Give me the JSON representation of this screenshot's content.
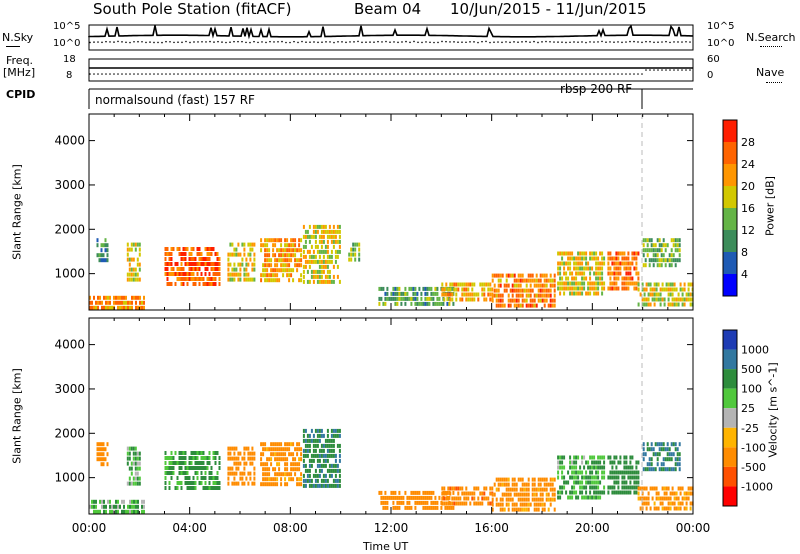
{
  "header": {
    "station": "South Pole Station (fitACF)",
    "beam": "Beam 04",
    "dates": "10/Jun/2015 - 11/Jun/2015"
  },
  "sky_panel": {
    "left_label": "N.Sky",
    "right_label": "N.Search",
    "left_ticks": [
      "10^5",
      "10^0"
    ],
    "right_ticks": [
      "10^5",
      "10^0"
    ]
  },
  "freq_panel": {
    "left_label_1": "Freq.",
    "left_label_2": "[MHz]",
    "right_label": "Nave",
    "left_ticks": [
      "18",
      "8"
    ],
    "right_ticks": [
      "60",
      "0"
    ]
  },
  "cpid_panel": {
    "label": "CPID",
    "mode_1": "normalsound (fast) 157 RF",
    "mode_2": "rbsp 200 RF"
  },
  "x_axis": {
    "label": "Time UT",
    "ticks": [
      "00:00",
      "04:00",
      "08:00",
      "12:00",
      "16:00",
      "20:00",
      "00:00"
    ]
  },
  "colors": {
    "power": [
      "#0000ff",
      "#1e5ab4",
      "#3c8c5a",
      "#64b446",
      "#d2c800",
      "#ff9600",
      "#ff6400",
      "#ff1e00"
    ],
    "velocity": [
      "#1e3cb4",
      "#3278a0",
      "#2d8c3c",
      "#50c83c",
      "#b4b4b4",
      "#ffb400",
      "#ff8c00",
      "#ff5000",
      "#ff0000"
    ]
  },
  "chart_data": [
    {
      "type": "heatmap",
      "title": "",
      "xlabel": "",
      "ylabel": "Slant Range [km]",
      "xlim": [
        0,
        24
      ],
      "ylim": [
        180,
        4600
      ],
      "y_ticks": [
        "1000",
        "2000",
        "3000",
        "4000"
      ],
      "colorbar": {
        "label": "Power [dB]",
        "ticks": [
          "4",
          "8",
          "12",
          "16",
          "20",
          "24",
          "28"
        ],
        "range": [
          0,
          32
        ]
      },
      "echo_regions": [
        {
          "t": [
            0.0,
            2.2
          ],
          "r": [
            250,
            500
          ],
          "value": 23
        },
        {
          "t": [
            0.3,
            0.7
          ],
          "r": [
            1300,
            1800
          ],
          "value": 10
        },
        {
          "t": [
            1.5,
            2.0
          ],
          "r": [
            900,
            1700
          ],
          "value": 18
        },
        {
          "t": [
            3.0,
            5.2
          ],
          "r": [
            800,
            1600
          ],
          "value": 26
        },
        {
          "t": [
            5.5,
            6.6
          ],
          "r": [
            900,
            1700
          ],
          "value": 19
        },
        {
          "t": [
            6.8,
            8.4
          ],
          "r": [
            800,
            1800
          ],
          "value": 22
        },
        {
          "t": [
            8.5,
            10.0
          ],
          "r": [
            800,
            2100
          ],
          "value": 18
        },
        {
          "t": [
            10.3,
            10.7
          ],
          "r": [
            1300,
            1700
          ],
          "value": 14
        },
        {
          "t": [
            11.5,
            14.5
          ],
          "r": [
            250,
            700
          ],
          "value": 12
        },
        {
          "t": [
            14.0,
            16.0
          ],
          "r": [
            350,
            800
          ],
          "value": 21
        },
        {
          "t": [
            16.0,
            18.5
          ],
          "r": [
            300,
            1000
          ],
          "value": 24
        },
        {
          "t": [
            18.6,
            20.5
          ],
          "r": [
            500,
            1500
          ],
          "value": 19
        },
        {
          "t": [
            20.6,
            21.8
          ],
          "r": [
            700,
            1500
          ],
          "value": 25
        },
        {
          "t": [
            21.8,
            24.0
          ],
          "r": [
            250,
            800
          ],
          "value": 18
        },
        {
          "t": [
            22.0,
            23.5
          ],
          "r": [
            1200,
            1800
          ],
          "value": 14
        }
      ]
    },
    {
      "type": "heatmap",
      "title": "",
      "xlabel": "Time UT",
      "ylabel": "Slant Range [km]",
      "xlim": [
        0,
        24
      ],
      "ylim": [
        180,
        4600
      ],
      "y_ticks": [
        "1000",
        "2000",
        "3000",
        "4000"
      ],
      "colorbar": {
        "label": "Velocity [m s^-1]",
        "ticks": [
          "1000",
          "500",
          "100",
          "25",
          "-25",
          "-100",
          "-500",
          "-1000"
        ],
        "range": [
          -1200,
          1200
        ]
      },
      "echo_regions": [
        {
          "t": [
            0.0,
            2.2
          ],
          "r": [
            250,
            500
          ],
          "value": 80
        },
        {
          "t": [
            0.3,
            0.7
          ],
          "r": [
            1300,
            1800
          ],
          "value": -300
        },
        {
          "t": [
            1.5,
            2.0
          ],
          "r": [
            900,
            1700
          ],
          "value": 90
        },
        {
          "t": [
            3.0,
            5.2
          ],
          "r": [
            800,
            1600
          ],
          "value": 150
        },
        {
          "t": [
            5.5,
            6.6
          ],
          "r": [
            900,
            1700
          ],
          "value": -250
        },
        {
          "t": [
            6.8,
            8.4
          ],
          "r": [
            800,
            1800
          ],
          "value": -200
        },
        {
          "t": [
            8.5,
            10.0
          ],
          "r": [
            800,
            2100
          ],
          "value": 400
        },
        {
          "t": [
            11.5,
            14.5
          ],
          "r": [
            250,
            700
          ],
          "value": -300
        },
        {
          "t": [
            14.0,
            16.0
          ],
          "r": [
            350,
            800
          ],
          "value": -350
        },
        {
          "t": [
            16.0,
            18.5
          ],
          "r": [
            300,
            1000
          ],
          "value": -200
        },
        {
          "t": [
            18.6,
            20.5
          ],
          "r": [
            500,
            1500
          ],
          "value": 120
        },
        {
          "t": [
            20.6,
            21.8
          ],
          "r": [
            700,
            1500
          ],
          "value": 300
        },
        {
          "t": [
            21.8,
            24.0
          ],
          "r": [
            250,
            800
          ],
          "value": -150
        },
        {
          "t": [
            22.0,
            23.5
          ],
          "r": [
            1200,
            1800
          ],
          "value": 600
        }
      ]
    }
  ]
}
